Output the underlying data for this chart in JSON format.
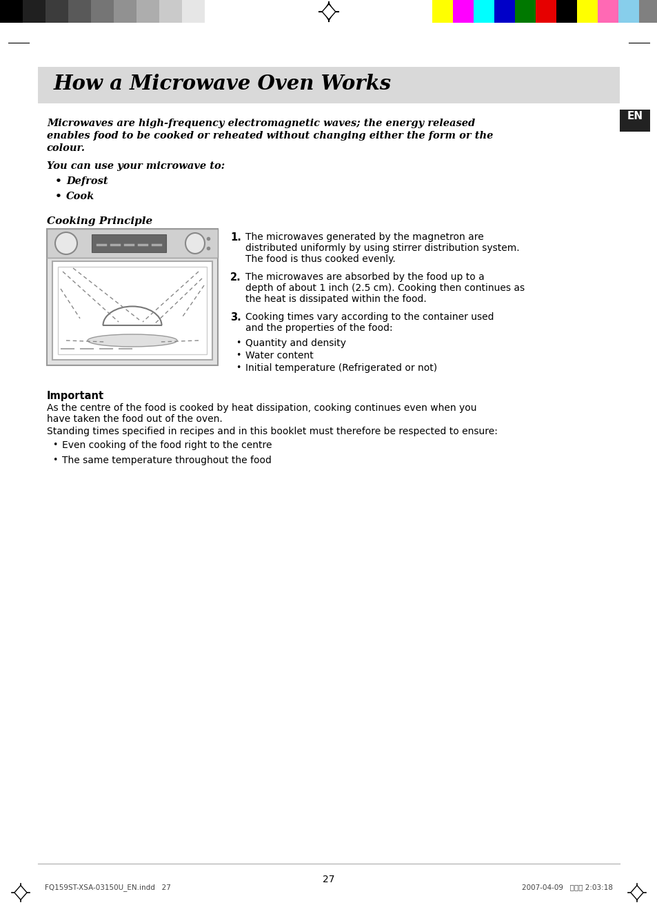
{
  "title": "How a Microwave Oven Works",
  "title_bg_color": "#d9d9d9",
  "page_bg_color": "#ffffff",
  "en_box_color": "#222222",
  "en_text": "EN",
  "intro_text_line1": "Microwaves are high-frequency electromagnetic waves; the energy released",
  "intro_text_line2": "enables food to be cooked or reheated without changing either the form or the",
  "intro_text_line3": "colour.",
  "you_can_text": "You can use your microwave to:",
  "bullets_italic": [
    "Defrost",
    "Cook"
  ],
  "cooking_principle_title": "Cooking Principle",
  "step1_text": "The microwaves generated by the magnetron are\ndistributed uniformly by using stirrer distribution system.\nThe food is thus cooked evenly.",
  "step2_text": "The microwaves are absorbed by the food up to a\ndepth of about 1 inch (2.5 cm). Cooking then continues as\nthe heat is dissipated within the food.",
  "step3_text": "Cooking times vary according to the container used\nand the properties of the food:",
  "step3_bullets": [
    "Quantity and density",
    "Water content",
    "Initial temperature (Refrigerated or not)"
  ],
  "important_title": "Important",
  "important_text1a": "As the centre of the food is cooked by heat dissipation, cooking continues even when you",
  "important_text1b": "have taken the food out of the oven.",
  "important_text2": "Standing times specified in recipes and in this booklet must therefore be respected to ensure:",
  "important_bullets": [
    "Even cooking of the food right to the centre",
    "The same temperature throughout the food"
  ],
  "page_number": "27",
  "footer_left": "FQ159ST-XSA-03150U_EN.indd   27",
  "footer_right": "2007-04-09   소습이 2:03:18",
  "gray_bar_colors": [
    "#000000",
    "#202020",
    "#3c3c3c",
    "#595959",
    "#757575",
    "#919191",
    "#adadad",
    "#cacaca",
    "#e6e6e6",
    "#ffffff"
  ],
  "color_bar_colors": [
    "#ffff00",
    "#ff00ff",
    "#00ffff",
    "#0000c8",
    "#007800",
    "#e60000",
    "#000000",
    "#ffff00",
    "#ff69b4",
    "#87ceeb",
    "#808080"
  ]
}
